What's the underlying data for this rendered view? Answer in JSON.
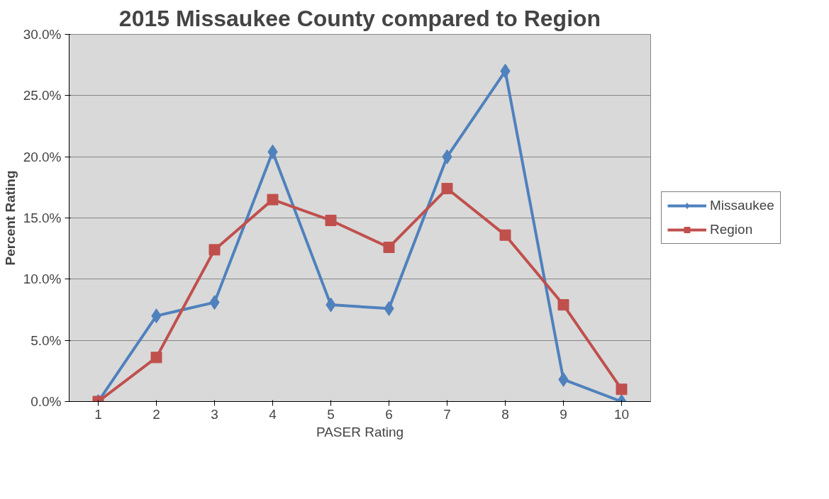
{
  "chart_data": {
    "type": "line",
    "title": "2015 Missaukee County compared to Region",
    "xlabel": "PASER Rating",
    "ylabel": "Percent Rating",
    "categories": [
      "1",
      "2",
      "3",
      "4",
      "5",
      "6",
      "7",
      "8",
      "9",
      "10"
    ],
    "series": [
      {
        "name": "Missaukee",
        "color": "#4f81bd",
        "marker": "diamond",
        "values": [
          0.0,
          7.0,
          8.1,
          20.4,
          7.9,
          7.6,
          20.0,
          27.0,
          1.8,
          0.0
        ]
      },
      {
        "name": "Region",
        "color": "#c0504d",
        "marker": "square",
        "values": [
          0.0,
          3.6,
          12.4,
          16.5,
          14.8,
          12.6,
          17.4,
          13.6,
          7.9,
          1.0
        ]
      }
    ],
    "ylim": [
      0,
      30
    ],
    "yticks": [
      {
        "value": 0,
        "label": "0.0%"
      },
      {
        "value": 5,
        "label": "5.0%"
      },
      {
        "value": 10,
        "label": "10.0%"
      },
      {
        "value": 15,
        "label": "15.0%"
      },
      {
        "value": 20,
        "label": "20.0%"
      },
      {
        "value": 25,
        "label": "25.0%"
      },
      {
        "value": 30,
        "label": "30.0%"
      }
    ],
    "grid": "y",
    "legend": "right",
    "line_style": "solid"
  }
}
